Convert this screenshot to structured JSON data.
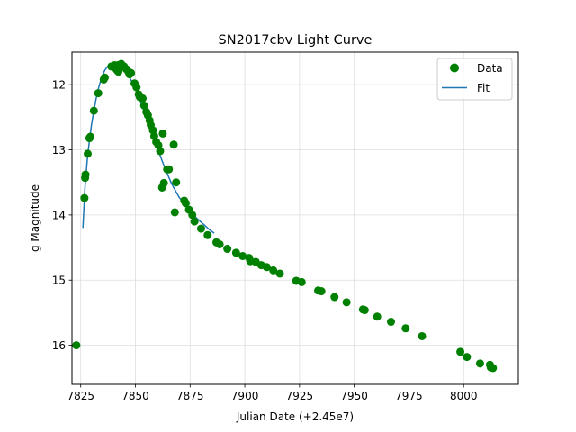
{
  "chart_data": {
    "type": "scatter",
    "title": "SN2017cbv Light Curve",
    "xlabel": "Julian Date (+2.45e7)",
    "ylabel": "g Magnitude",
    "xlim": [
      7821,
      8025
    ],
    "ylim": [
      16.6,
      11.5
    ],
    "y_inverted": true,
    "x_ticks": [
      7825,
      7850,
      7875,
      7900,
      7925,
      7950,
      7975,
      8000
    ],
    "y_ticks": [
      12,
      13,
      14,
      15,
      16
    ],
    "grid": true,
    "legend_position": "top-right",
    "legend": [
      "Data",
      "Fit"
    ],
    "colors": {
      "data": "#008000",
      "fit": "#1f77b4"
    },
    "series": [
      {
        "name": "Data",
        "kind": "scatter",
        "x": [
          7823.0,
          7826.7,
          7827.0,
          7827.2,
          7828.2,
          7829.0,
          7829.4,
          7831.0,
          7833.0,
          7835.5,
          7836.0,
          7839.0,
          7840.5,
          7841.2,
          7841.7,
          7842.0,
          7842.2,
          7843.0,
          7843.5,
          7844.8,
          7845.8,
          7846.8,
          7847.3,
          7848.0,
          7849.6,
          7850.5,
          7851.5,
          7852.0,
          7853.3,
          7854.0,
          7855.0,
          7855.7,
          7856.5,
          7857.0,
          7858.0,
          7858.6,
          7859.5,
          7860.5,
          7861.3,
          7862.2,
          7862.5,
          7863.0,
          7864.5,
          7865.3,
          7867.5,
          7868.0,
          7868.6,
          7872.3,
          7873.0,
          7874.5,
          7876.0,
          7877.0,
          7880.0,
          7883.0,
          7887.0,
          7888.5,
          7892.0,
          7896.0,
          7899.0,
          7902.0,
          7902.5,
          7905.0,
          7907.5,
          7910.0,
          7913.0,
          7916.0,
          7923.5,
          7926.0,
          7933.5,
          7935.0,
          7941.0,
          7946.5,
          7954.0,
          7954.8,
          7960.5,
          7966.8,
          7973.5,
          7981.0,
          7998.5,
          8001.5,
          8007.5,
          8012.0,
          8012.4,
          8013.4
        ],
        "y": [
          16.0,
          13.74,
          13.43,
          13.38,
          13.06,
          12.82,
          12.8,
          12.4,
          12.13,
          11.92,
          11.89,
          11.72,
          11.7,
          11.76,
          11.78,
          11.7,
          11.8,
          11.73,
          11.68,
          11.72,
          11.76,
          11.8,
          11.84,
          11.82,
          11.98,
          12.04,
          12.15,
          12.19,
          12.21,
          12.32,
          12.42,
          12.47,
          12.55,
          12.62,
          12.7,
          12.79,
          12.88,
          12.93,
          13.02,
          13.58,
          12.75,
          13.51,
          13.3,
          13.3,
          12.92,
          13.96,
          13.5,
          13.78,
          13.82,
          13.92,
          14.0,
          14.1,
          14.21,
          14.31,
          14.42,
          14.45,
          14.52,
          14.58,
          14.63,
          14.66,
          14.71,
          14.72,
          14.77,
          14.8,
          14.85,
          14.9,
          15.01,
          15.03,
          15.16,
          15.17,
          15.26,
          15.34,
          15.45,
          15.46,
          15.56,
          15.64,
          15.74,
          15.86,
          16.1,
          16.18,
          16.28,
          16.3,
          16.34,
          16.35
        ]
      },
      {
        "name": "Fit",
        "kind": "line",
        "x": [
          7826.0,
          7827.0,
          7828.0,
          7829.0,
          7830.0,
          7831.0,
          7832.0,
          7833.0,
          7834.0,
          7835.0,
          7836.0,
          7837.0,
          7838.0,
          7839.0,
          7840.0,
          7841.0,
          7842.0,
          7843.0,
          7844.0,
          7845.0,
          7846.0,
          7847.0,
          7848.0,
          7849.0,
          7850.0,
          7851.0,
          7852.0,
          7853.0,
          7854.0,
          7855.0,
          7856.0,
          7857.0,
          7858.0,
          7859.0,
          7860.0,
          7861.0,
          7862.0,
          7863.0,
          7864.0,
          7865.0,
          7866.0,
          7867.0,
          7868.0,
          7869.0,
          7870.0,
          7872.0,
          7874.0,
          7876.0,
          7878.0,
          7880.0,
          7882.0,
          7884.0,
          7886.0
        ],
        "y": [
          14.2,
          13.55,
          13.15,
          12.85,
          12.6,
          12.4,
          12.22,
          12.07,
          11.95,
          11.85,
          11.78,
          11.73,
          11.7,
          11.68,
          11.68,
          11.69,
          11.7,
          11.72,
          11.75,
          11.78,
          11.82,
          11.87,
          11.93,
          12.0,
          12.07,
          12.15,
          12.23,
          12.32,
          12.41,
          12.5,
          12.6,
          12.69,
          12.79,
          12.88,
          12.97,
          13.06,
          13.15,
          13.24,
          13.32,
          13.4,
          13.48,
          13.55,
          13.61,
          13.67,
          13.73,
          13.82,
          13.9,
          13.98,
          14.05,
          14.11,
          14.17,
          14.23,
          14.28
        ]
      }
    ]
  }
}
